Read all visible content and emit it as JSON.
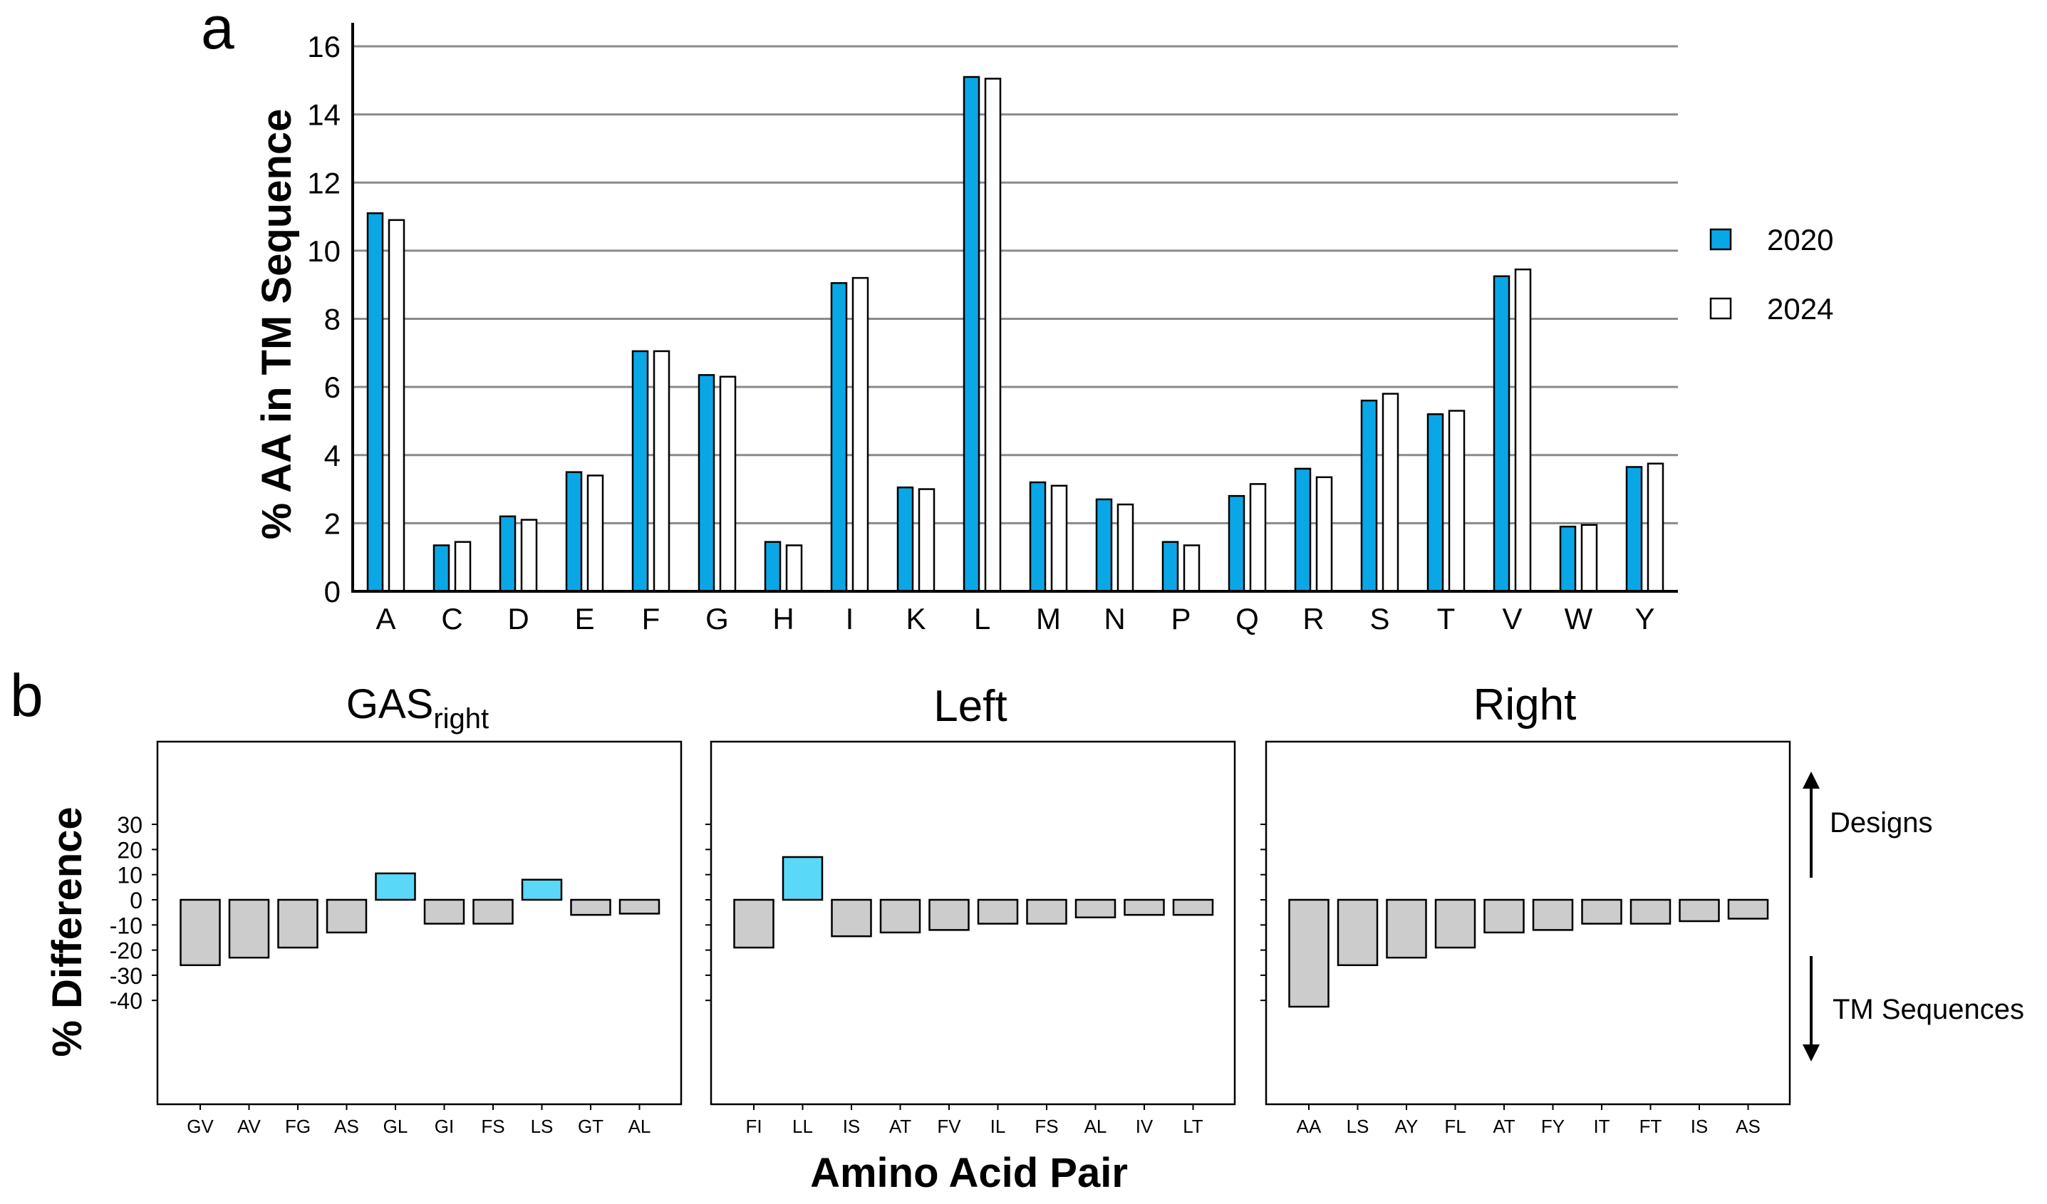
{
  "panel_a": {
    "label": "a",
    "ylabel": "% AA in TM Sequence",
    "legend": [
      "2020",
      "2024"
    ],
    "colors": {
      "2020": "#0aa7e6",
      "2024": "#ffffff"
    }
  },
  "panel_b": {
    "label": "b",
    "ylabel": "% Difference",
    "xlabel": "Amino Acid Pair",
    "annotations": {
      "up": "Designs",
      "down": "TM Sequences"
    },
    "subplot_titles": [
      {
        "main": "GAS",
        "sub": "right"
      },
      {
        "main": "Left",
        "sub": ""
      },
      {
        "main": "Right",
        "sub": ""
      }
    ],
    "colors": {
      "positive": "#5ad8f8",
      "negative": "#cccccc"
    }
  },
  "chart_data": [
    {
      "type": "bar",
      "title": "",
      "xlabel": "",
      "ylabel": "% AA in TM Sequence",
      "categories": [
        "A",
        "C",
        "D",
        "E",
        "F",
        "G",
        "H",
        "I",
        "K",
        "L",
        "M",
        "N",
        "P",
        "Q",
        "R",
        "S",
        "T",
        "V",
        "W",
        "Y"
      ],
      "series": [
        {
          "name": "2020",
          "values": [
            11.1,
            1.35,
            2.2,
            3.5,
            7.05,
            6.35,
            1.45,
            9.05,
            3.05,
            15.1,
            3.2,
            2.7,
            1.45,
            2.8,
            3.6,
            5.6,
            5.2,
            9.25,
            1.9,
            3.65
          ]
        },
        {
          "name": "2024",
          "values": [
            10.9,
            1.45,
            2.1,
            3.4,
            7.05,
            6.3,
            1.35,
            9.2,
            3.0,
            15.05,
            3.1,
            2.55,
            1.35,
            3.15,
            3.35,
            5.8,
            5.3,
            9.45,
            1.95,
            3.75
          ]
        }
      ],
      "ylim": [
        0,
        16.5
      ],
      "yticks": [
        0,
        2,
        4,
        6,
        8,
        10,
        12,
        14,
        16
      ],
      "grid": true,
      "legend": "right"
    },
    {
      "type": "bar",
      "title": "GASright",
      "xlabel": "Amino Acid Pair",
      "ylabel": "% Difference",
      "categories": [
        "GV",
        "AV",
        "FG",
        "AS",
        "GL",
        "GI",
        "FS",
        "LS",
        "GT",
        "AL"
      ],
      "values": [
        -26,
        -23,
        -19,
        -13,
        10.5,
        -9.5,
        -9.5,
        8,
        -6,
        -5.5
      ],
      "ylim": [
        -45,
        35
      ],
      "yticks": [
        30,
        20,
        10,
        0,
        -10,
        -20,
        -30,
        -40
      ]
    },
    {
      "type": "bar",
      "title": "Left",
      "xlabel": "Amino Acid Pair",
      "ylabel": "% Difference",
      "categories": [
        "FI",
        "LL",
        "IS",
        "AT",
        "FV",
        "IL",
        "FS",
        "AL",
        "IV",
        "LT"
      ],
      "values": [
        -19,
        17,
        -14.5,
        -13,
        -12,
        -9.5,
        -9.5,
        -7,
        -6,
        -6
      ],
      "ylim": [
        -45,
        35
      ]
    },
    {
      "type": "bar",
      "title": "Right",
      "xlabel": "Amino Acid Pair",
      "ylabel": "% Difference",
      "categories": [
        "AA",
        "LS",
        "AY",
        "FL",
        "AT",
        "FY",
        "IT",
        "FT",
        "IS",
        "AS"
      ],
      "values": [
        -42.5,
        -26,
        -23,
        -19,
        -13,
        -12,
        -9.5,
        -9.5,
        -8.5,
        -7.5
      ],
      "ylim": [
        -45,
        35
      ]
    }
  ]
}
